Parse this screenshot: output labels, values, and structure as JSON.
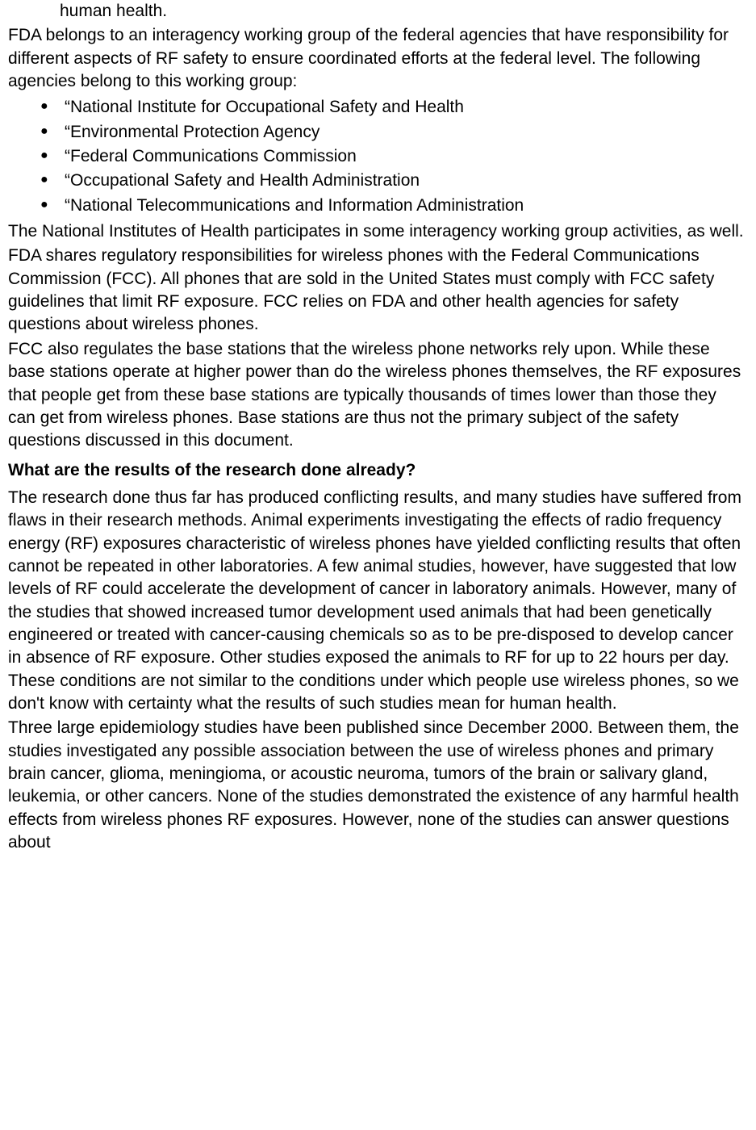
{
  "fragment_top": "human health.",
  "para_intro": "FDA belongs to an interagency working group of the federal agencies that have responsibility for different aspects of RF safety to ensure coordinated efforts at the federal level. The following agencies belong to this working group:",
  "agencies": [
    "“National Institute for Occupational Safety and Health",
    "“Environmental Protection Agency",
    "“Federal Communications Commission",
    "“Occupational Safety and Health Administration",
    "“National Telecommunications and Information Administration"
  ],
  "para_nih": "The National Institutes of Health participates in some interagency working group activities, as well.",
  "para_fcc1": "FDA shares regulatory responsibilities for wireless phones with the Federal Communications Commission (FCC). All phones that are sold in the United States must comply with FCC safety guidelines that limit RF exposure. FCC relies on FDA and other health agencies for safety questions about wireless phones.",
  "para_fcc2": "FCC also regulates the base stations that the wireless phone networks rely upon. While these base stations operate at higher power than do the wireless phones themselves, the RF exposures that people get from these base stations are typically thousands of times lower than those they can get from wireless phones. Base stations are thus not the primary subject of the safety questions discussed in this document.",
  "heading_research": "What are the results of the research done already?",
  "para_research1": "The research done thus far has produced conflicting results, and many studies have suffered from flaws in their research methods. Animal experiments investigating the effects of radio frequency energy (RF) exposures characteristic of wireless phones have yielded conflicting results that often cannot be repeated in other laboratories. A few animal studies, however, have suggested that low levels of RF could accelerate the development of cancer in laboratory animals. However, many of the studies that showed increased tumor development used animals that had been genetically engineered or treated with cancer-causing chemicals so as to be pre-disposed to develop cancer in absence of RF exposure. Other studies exposed the animals to RF for up to 22 hours per day. These conditions are not similar to the conditions under which people use wireless phones, so we don't know with certainty what the results of such studies mean for human health.",
  "para_research2": "Three large epidemiology studies have been published since December 2000. Between them, the studies investigated any possible association between the use of wireless phones and primary brain cancer, glioma, meningioma, or acoustic neuroma, tumors of the brain or salivary gland, leukemia, or other cancers. None of the studies demonstrated the existence of any harmful health effects from wireless phones RF exposures. However, none of the studies can answer questions about"
}
